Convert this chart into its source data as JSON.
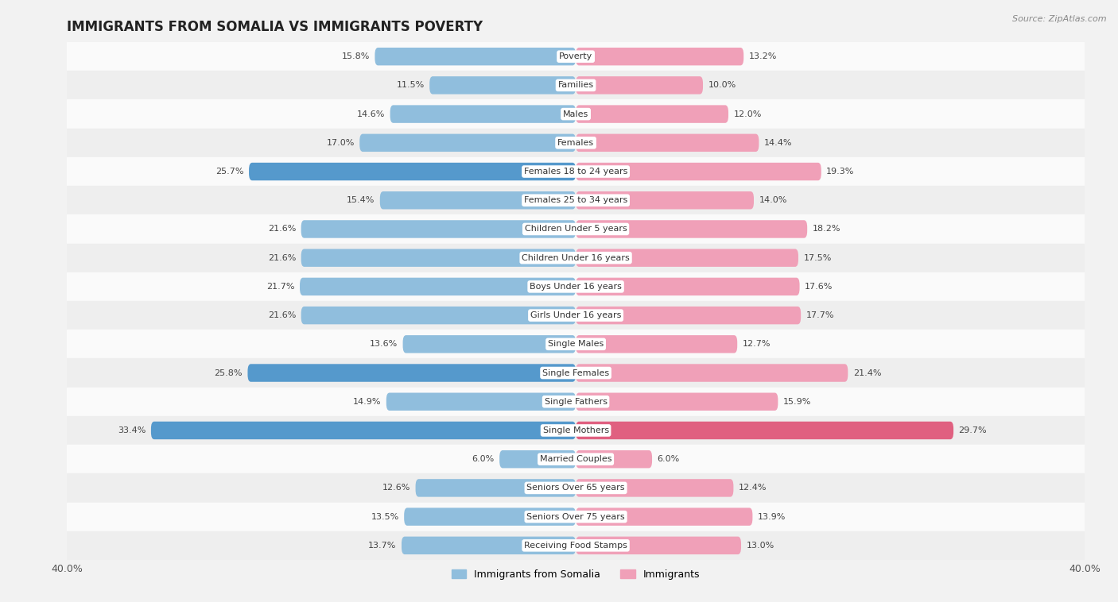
{
  "title": "IMMIGRANTS FROM SOMALIA VS IMMIGRANTS POVERTY",
  "source": "Source: ZipAtlas.com",
  "categories": [
    "Poverty",
    "Families",
    "Males",
    "Females",
    "Females 18 to 24 years",
    "Females 25 to 34 years",
    "Children Under 5 years",
    "Children Under 16 years",
    "Boys Under 16 years",
    "Girls Under 16 years",
    "Single Males",
    "Single Females",
    "Single Fathers",
    "Single Mothers",
    "Married Couples",
    "Seniors Over 65 years",
    "Seniors Over 75 years",
    "Receiving Food Stamps"
  ],
  "somalia_values": [
    15.8,
    11.5,
    14.6,
    17.0,
    25.7,
    15.4,
    21.6,
    21.6,
    21.7,
    21.6,
    13.6,
    25.8,
    14.9,
    33.4,
    6.0,
    12.6,
    13.5,
    13.7
  ],
  "immigrant_values": [
    13.2,
    10.0,
    12.0,
    14.4,
    19.3,
    14.0,
    18.2,
    17.5,
    17.6,
    17.7,
    12.7,
    21.4,
    15.9,
    29.7,
    6.0,
    12.4,
    13.9,
    13.0
  ],
  "somalia_color": "#90bedd",
  "immigrant_color": "#f0a0b8",
  "highlight_somalia_indices": [
    4,
    11,
    13
  ],
  "highlight_immigrant_indices": [
    13
  ],
  "highlight_somalia_color": "#5599cc",
  "highlight_immigrant_color": "#e06080",
  "xlim": 40.0,
  "background_color": "#f2f2f2",
  "row_colors": [
    "#fafafa",
    "#eeeeee"
  ],
  "title_fontsize": 12,
  "source_fontsize": 8,
  "label_fontsize": 8,
  "value_fontsize": 8,
  "legend_somalia": "Immigrants from Somalia",
  "legend_immigrant": "Immigrants"
}
